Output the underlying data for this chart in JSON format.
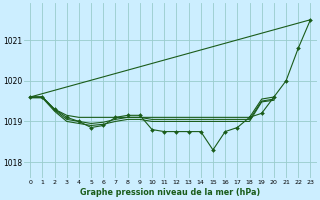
{
  "background_color": "#cceeff",
  "grid_color": "#99cccc",
  "line_color": "#1a5c1a",
  "title": "Graphe pression niveau de la mer (hPa)",
  "xlim": [
    -0.5,
    23.5
  ],
  "ylim": [
    1017.6,
    1021.9
  ],
  "yticks": [
    1018,
    1019,
    1020,
    1021
  ],
  "xticks": [
    0,
    1,
    2,
    3,
    4,
    5,
    6,
    7,
    8,
    9,
    10,
    11,
    12,
    13,
    14,
    15,
    16,
    17,
    18,
    19,
    20,
    21,
    22,
    23
  ],
  "line1_x": [
    0,
    1,
    2,
    3,
    4,
    5,
    6,
    7,
    8,
    9,
    10,
    11,
    12,
    13,
    14,
    15,
    16,
    17,
    18,
    19,
    20,
    21,
    22,
    23
  ],
  "line1_y": [
    1019.6,
    1019.6,
    1019.3,
    1019.1,
    1019.0,
    1018.85,
    1018.9,
    1019.1,
    1019.15,
    1019.15,
    1018.8,
    1018.75,
    1018.75,
    1018.75,
    1018.75,
    1018.3,
    1018.75,
    1018.85,
    1019.1,
    1019.2,
    1019.6,
    1020.0,
    1020.8,
    1021.5
  ],
  "line2_x": [
    0,
    1,
    2,
    3,
    4,
    5,
    6,
    7,
    8,
    9,
    10,
    11,
    12,
    13,
    14,
    15,
    16,
    17,
    18,
    19,
    20
  ],
  "line2_y": [
    1019.6,
    1019.6,
    1019.3,
    1019.15,
    1019.1,
    1019.1,
    1019.1,
    1019.1,
    1019.1,
    1019.1,
    1019.1,
    1019.1,
    1019.1,
    1019.1,
    1019.1,
    1019.1,
    1019.1,
    1019.1,
    1019.1,
    1019.55,
    1019.6
  ],
  "line3_x": [
    0,
    23
  ],
  "line3_y": [
    1019.6,
    1021.5
  ],
  "line4_x": [
    0,
    1,
    2,
    3,
    4,
    5,
    6,
    7,
    8,
    9,
    10,
    11,
    12,
    13,
    14,
    15,
    16,
    17,
    18,
    19,
    20
  ],
  "line4_y": [
    1019.6,
    1019.6,
    1019.28,
    1019.05,
    1019.0,
    1018.95,
    1018.98,
    1019.05,
    1019.1,
    1019.1,
    1019.05,
    1019.05,
    1019.05,
    1019.05,
    1019.05,
    1019.05,
    1019.05,
    1019.05,
    1019.05,
    1019.5,
    1019.55
  ],
  "line5_x": [
    0,
    1,
    2,
    3,
    4,
    5,
    6,
    7,
    8,
    9,
    10,
    11,
    12,
    13,
    14,
    15,
    16,
    17,
    18,
    19,
    20
  ],
  "line5_y": [
    1019.58,
    1019.58,
    1019.25,
    1019.0,
    1018.95,
    1018.9,
    1018.93,
    1019.0,
    1019.05,
    1019.05,
    1019.0,
    1019.0,
    1019.0,
    1019.0,
    1019.0,
    1019.0,
    1019.0,
    1019.0,
    1019.0,
    1019.48,
    1019.52
  ]
}
